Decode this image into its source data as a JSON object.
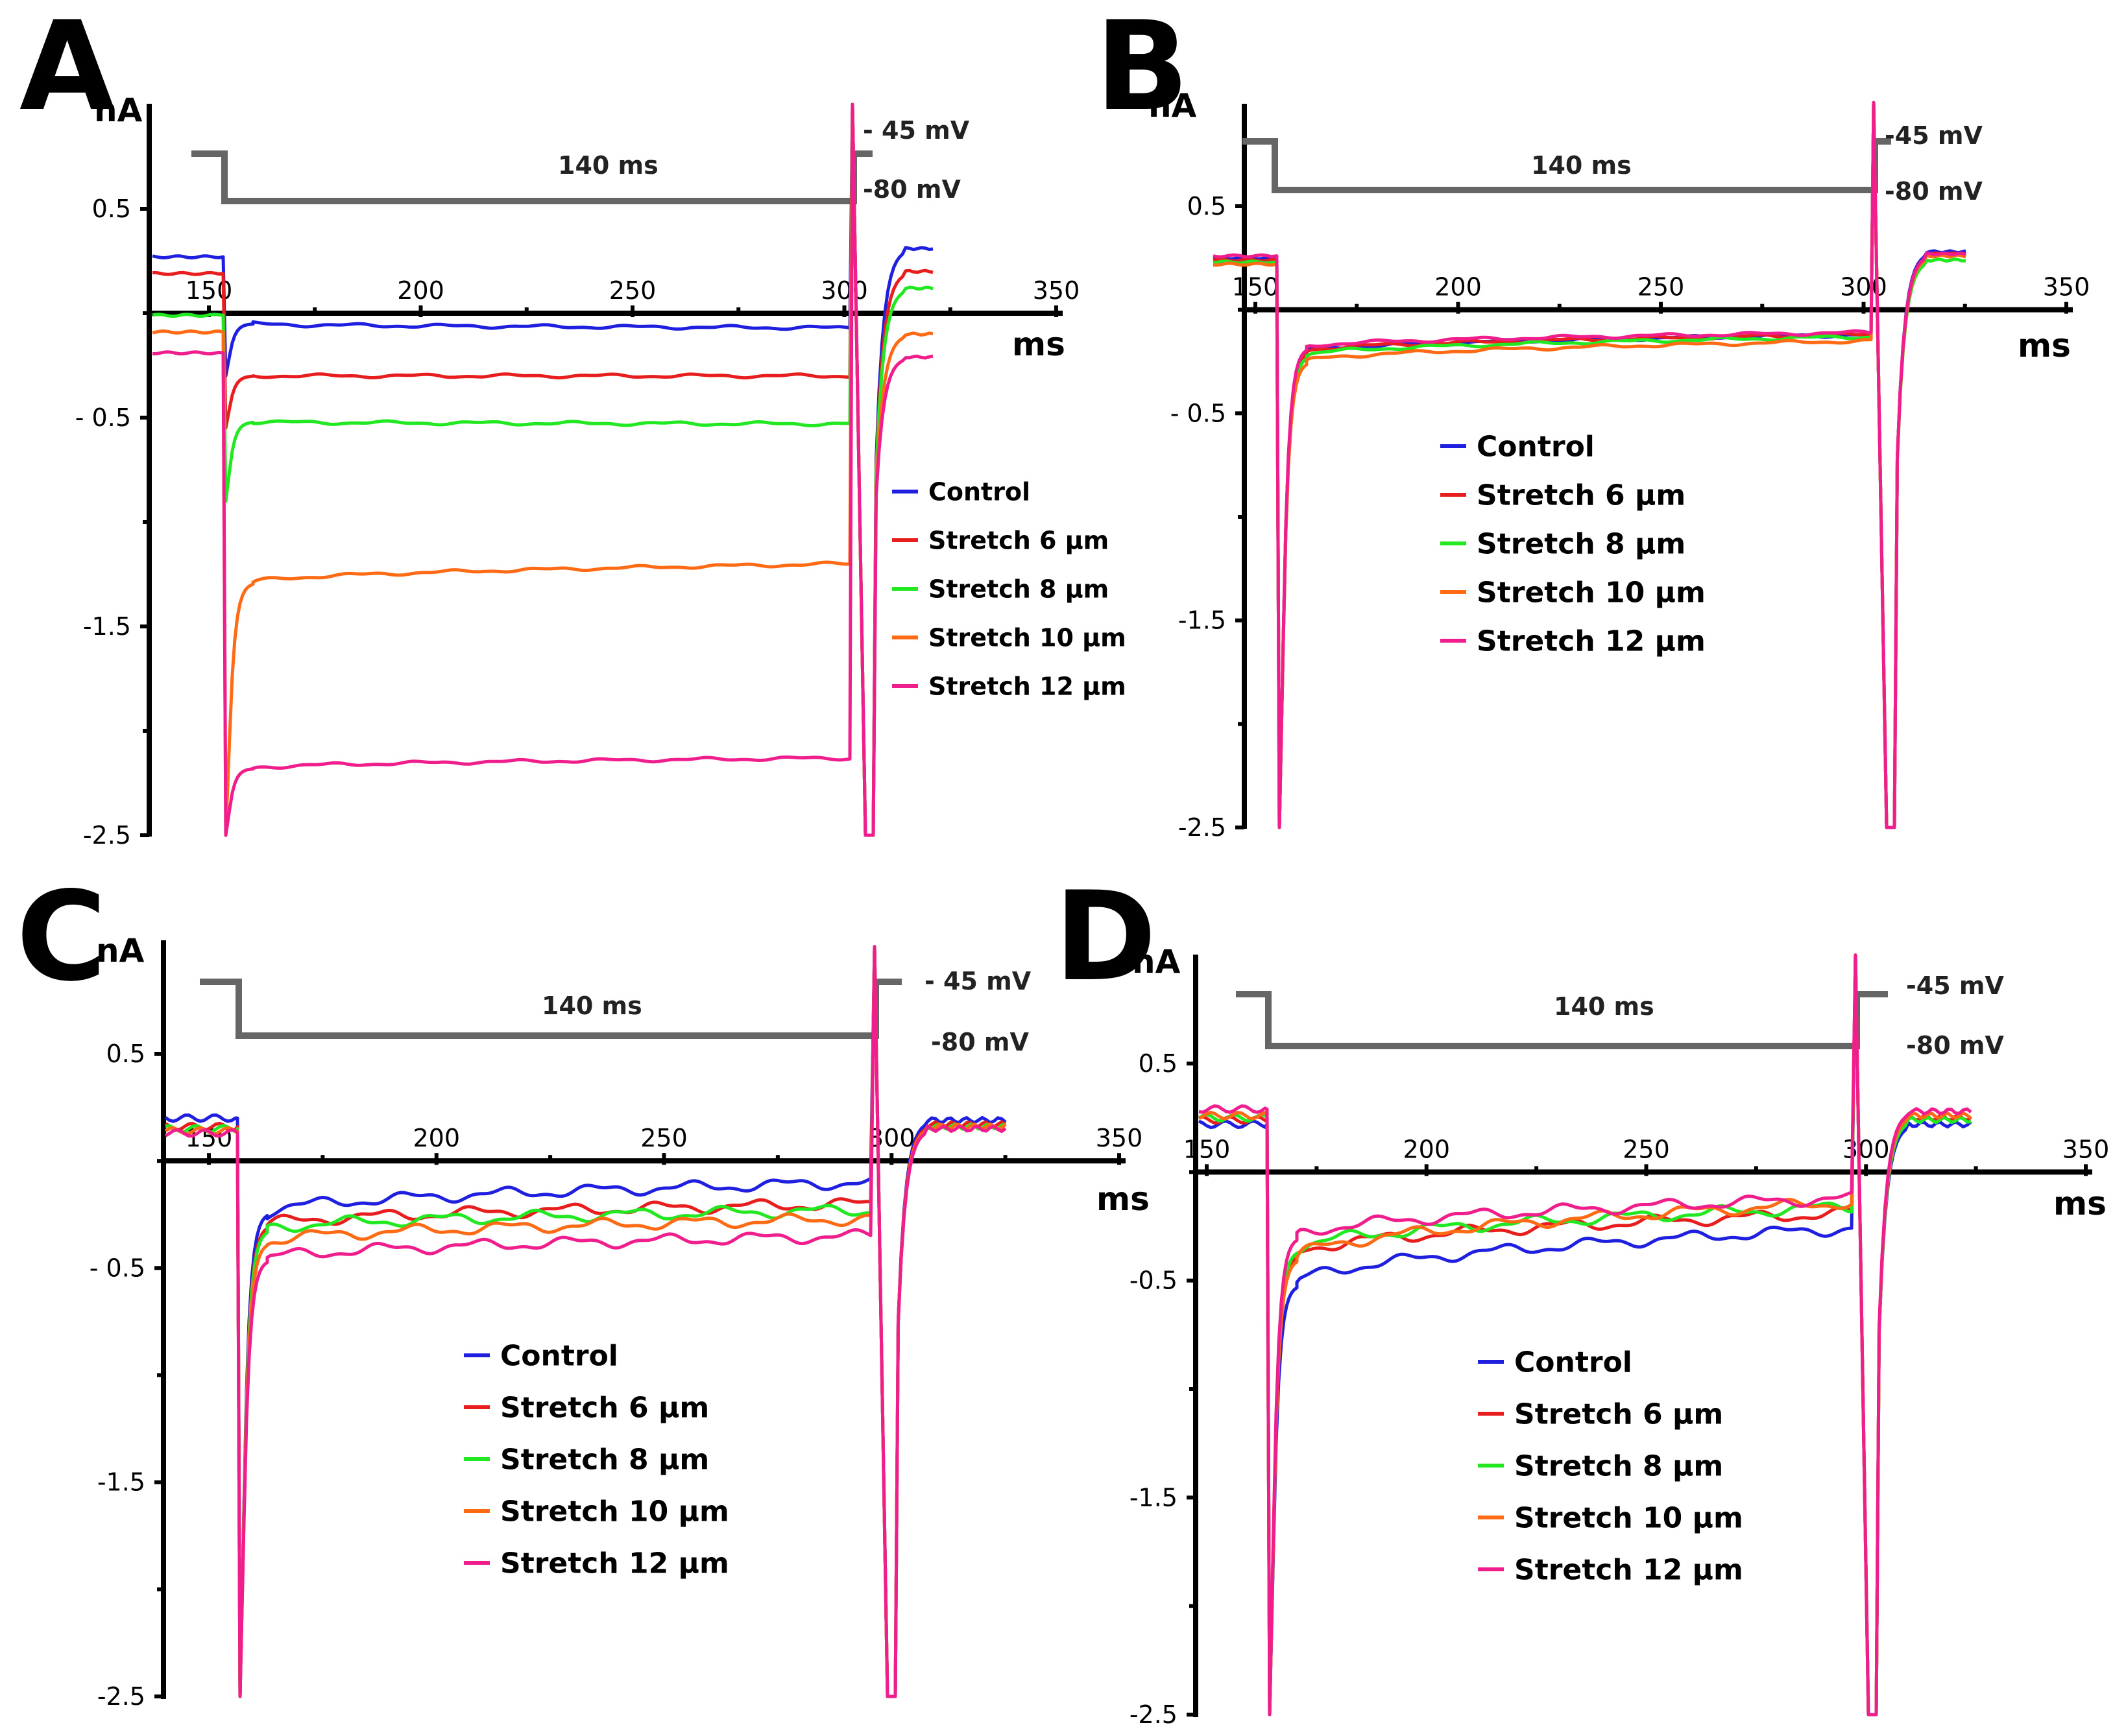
{
  "chart_data": [
    {
      "type": "line",
      "panel": "A",
      "ylabel": "nA",
      "xlabel": "ms",
      "yticks": [
        "0.5",
        "- 0.5",
        "-1.5",
        "-2.5"
      ],
      "xticks": [
        "150",
        "200",
        "250",
        "300",
        "350"
      ],
      "protocol": {
        "duration": "140 ms",
        "hold": "- 45 mV",
        "step": "-80 mV"
      },
      "series": [
        {
          "name": "Control",
          "color": "#1f1fe0",
          "pre": 0.27,
          "steady": -0.05,
          "end": -0.07,
          "post": 0.31,
          "peak": -0.3
        },
        {
          "name": "Stretch 6 μm",
          "color": "#e81e1e",
          "pre": 0.19,
          "steady": -0.3,
          "end": -0.3,
          "post": 0.2,
          "peak": -0.55
        },
        {
          "name": "Stretch 8 μm",
          "color": "#22e822",
          "pre": -0.01,
          "steady": -0.52,
          "end": -0.53,
          "post": 0.12,
          "peak": -0.9
        },
        {
          "name": "Stretch 10 μm",
          "color": "#ff6a14",
          "pre": -0.09,
          "steady": -1.29,
          "end": -1.2,
          "post": -0.1,
          "peak": -2.5
        },
        {
          "name": "Stretch 12 μm",
          "color": "#f01e8c",
          "pre": -0.19,
          "steady": -2.18,
          "end": -2.13,
          "post": -0.21,
          "peak": -2.5
        }
      ]
    },
    {
      "type": "line",
      "panel": "B",
      "ylabel": "nA",
      "xlabel": "ms",
      "yticks": [
        "0.5",
        "- 0.5",
        "-1.5",
        "-2.5"
      ],
      "xticks": [
        "150",
        "200",
        "250",
        "300",
        "350"
      ],
      "protocol": {
        "duration": "140 ms",
        "hold": "-45 mV",
        "step": "-80 mV"
      },
      "series": [
        {
          "name": "Control",
          "color": "#1f1fe0",
          "pre": 0.25,
          "steady": -0.2,
          "end": -0.12,
          "post": 0.28,
          "peak": -2.5
        },
        {
          "name": "Stretch 6 μm",
          "color": "#e81e1e",
          "pre": 0.24,
          "steady": -0.2,
          "end": -0.12,
          "post": 0.27,
          "peak": -2.5
        },
        {
          "name": "Stretch 8 μm",
          "color": "#22e822",
          "pre": 0.23,
          "steady": -0.22,
          "end": -0.13,
          "post": 0.24,
          "peak": -2.5
        },
        {
          "name": "Stretch 10 μm",
          "color": "#ff6a14",
          "pre": 0.22,
          "steady": -0.25,
          "end": -0.15,
          "post": 0.26,
          "peak": -2.5
        },
        {
          "name": "Stretch 12 μm",
          "color": "#f01e8c",
          "pre": 0.26,
          "steady": -0.18,
          "end": -0.11,
          "post": 0.27,
          "peak": -2.5
        }
      ]
    },
    {
      "type": "line",
      "panel": "C",
      "ylabel": "nA",
      "xlabel": "ms",
      "yticks": [
        "0.5",
        "- 0.5",
        "-1.5",
        "-2.5"
      ],
      "xticks": [
        "150",
        "200",
        "250",
        "300",
        "350"
      ],
      "protocol": {
        "duration": "140 ms",
        "hold": "- 45 mV",
        "step": "-80 mV"
      },
      "series": [
        {
          "name": "Control",
          "color": "#1f1fe0",
          "pre": 0.2,
          "steady": -0.24,
          "end": -0.1,
          "post": 0.19,
          "peak": -2.5
        },
        {
          "name": "Stretch 6 μm",
          "color": "#e81e1e",
          "pre": 0.16,
          "steady": -0.3,
          "end": -0.2,
          "post": 0.17,
          "peak": -2.5
        },
        {
          "name": "Stretch 8 μm",
          "color": "#22e822",
          "pre": 0.15,
          "steady": -0.32,
          "end": -0.23,
          "post": 0.16,
          "peak": -2.5
        },
        {
          "name": "Stretch 10 μm",
          "color": "#ff6a14",
          "pre": 0.14,
          "steady": -0.38,
          "end": -0.27,
          "post": 0.16,
          "peak": -2.5
        },
        {
          "name": "Stretch 12 μm",
          "color": "#f01e8c",
          "pre": 0.13,
          "steady": -0.46,
          "end": -0.35,
          "post": 0.15,
          "peak": -2.5
        }
      ]
    },
    {
      "type": "line",
      "panel": "D",
      "ylabel": "nA",
      "xlabel": "ms",
      "yticks": [
        "0.5",
        "-0.5",
        "-1.5",
        "-2.5"
      ],
      "xticks": [
        "150",
        "200",
        "250",
        "300",
        "350"
      ],
      "protocol": {
        "duration": "140 ms",
        "hold": "-45 mV",
        "step": "-80 mV"
      },
      "series": [
        {
          "name": "Control",
          "color": "#1f1fe0",
          "pre": 0.22,
          "steady": -0.52,
          "end": -0.26,
          "post": 0.22,
          "peak": -2.5
        },
        {
          "name": "Stretch 6 μm",
          "color": "#e81e1e",
          "pre": 0.24,
          "steady": -0.38,
          "end": -0.19,
          "post": 0.25,
          "peak": -2.5
        },
        {
          "name": "Stretch 8 μm",
          "color": "#22e822",
          "pre": 0.25,
          "steady": -0.36,
          "end": -0.16,
          "post": 0.24,
          "peak": -2.5
        },
        {
          "name": "Stretch 10 μm",
          "color": "#ff6a14",
          "pre": 0.26,
          "steady": -0.4,
          "end": -0.14,
          "post": 0.26,
          "peak": -2.5
        },
        {
          "name": "Stretch 12 μm",
          "color": "#f01e8c",
          "pre": 0.29,
          "steady": -0.3,
          "end": -0.12,
          "post": 0.28,
          "peak": -2.5
        }
      ]
    }
  ]
}
